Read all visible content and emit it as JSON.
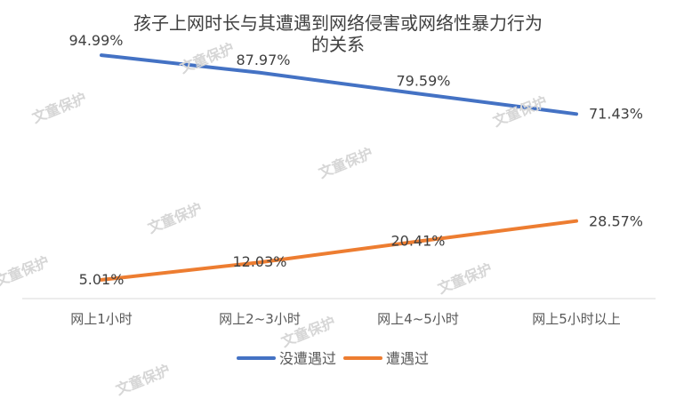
{
  "chart_data": {
    "type": "line",
    "title_lines": [
      "孩子上网时长与其遭遇到网络侵害或网络性暴力行为",
      "的关系"
    ],
    "categories": [
      "网上1小时",
      "网上2~3小时",
      "网上4~5小时",
      "网上5小时以上"
    ],
    "series": [
      {
        "name": "没遭遇过",
        "values": [
          94.99,
          87.97,
          79.59,
          71.43
        ],
        "labels": [
          "94.99%",
          "87.97%",
          "79.59%",
          "71.43%"
        ],
        "color": "#4472C4"
      },
      {
        "name": "遭遇过",
        "values": [
          5.01,
          12.03,
          20.41,
          28.57
        ],
        "labels": [
          "5.01%",
          "12.03%",
          "20.41%",
          "28.57%"
        ],
        "color": "#ED7D31"
      }
    ],
    "ylim": [
      0,
      100
    ],
    "grid": false,
    "legend_position": "bottom"
  },
  "watermark_text": "文童保护"
}
